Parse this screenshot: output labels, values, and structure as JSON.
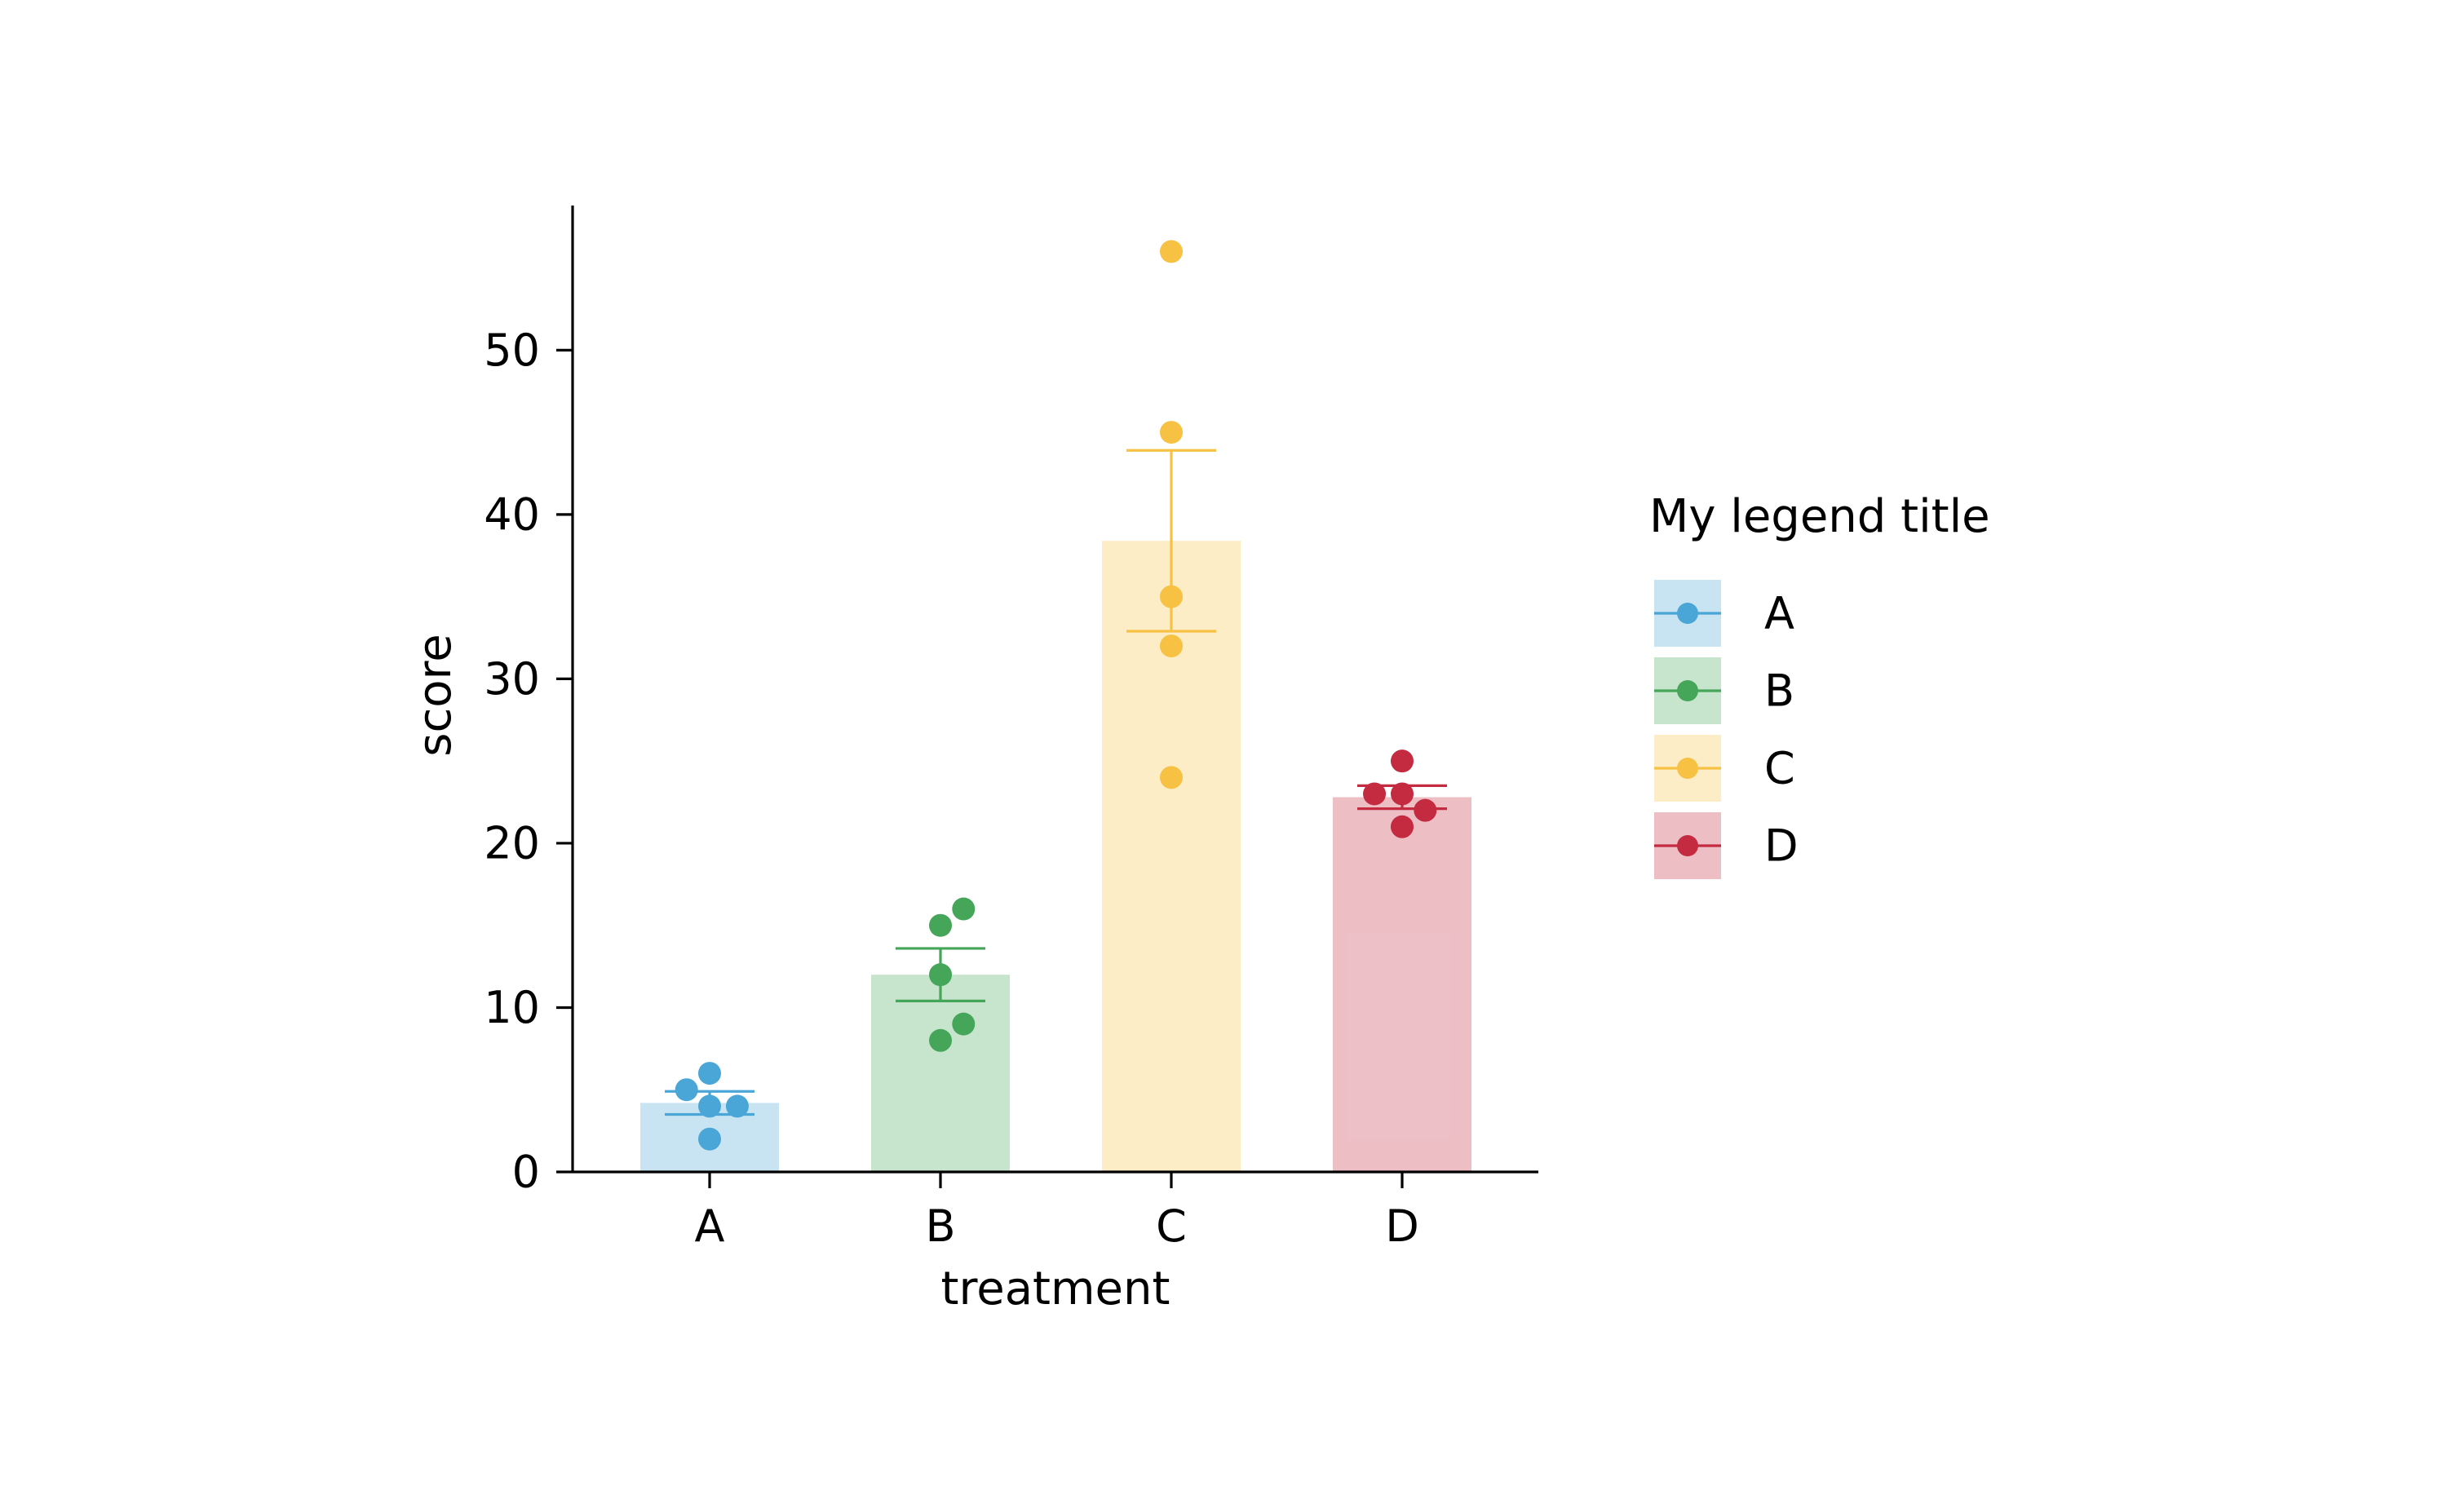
{
  "chart_data": {
    "type": "bar",
    "categories": [
      "A",
      "B",
      "C",
      "D"
    ],
    "colors": [
      "#4aa6d6",
      "#45a65a",
      "#f7c244",
      "#c42a40"
    ],
    "bar_opacity": 0.3,
    "values": [
      4.2,
      12.0,
      38.4,
      22.8
    ],
    "error_bars": [
      {
        "low": 3.5,
        "high": 4.9
      },
      {
        "low": 10.4,
        "high": 13.6
      },
      {
        "low": 32.9,
        "high": 43.9
      },
      {
        "low": 22.1,
        "high": 23.5
      }
    ],
    "points": [
      [
        {
          "x": 0,
          "y": 6
        },
        {
          "x": -0.1,
          "y": 5
        },
        {
          "x": 0,
          "y": 4
        },
        {
          "x": 0.12,
          "y": 4
        },
        {
          "x": 0,
          "y": 2
        }
      ],
      [
        {
          "x": 0.1,
          "y": 16
        },
        {
          "x": 0,
          "y": 15
        },
        {
          "x": 0,
          "y": 12
        },
        {
          "x": 0.1,
          "y": 9
        },
        {
          "x": 0,
          "y": 8
        }
      ],
      [
        {
          "x": 0,
          "y": 56
        },
        {
          "x": 0,
          "y": 45
        },
        {
          "x": 0,
          "y": 35
        },
        {
          "x": 0,
          "y": 32
        },
        {
          "x": 0,
          "y": 24
        }
      ],
      [
        {
          "x": 0,
          "y": 25
        },
        {
          "x": -0.12,
          "y": 23
        },
        {
          "x": 0,
          "y": 23
        },
        {
          "x": 0.1,
          "y": 22
        },
        {
          "x": 0,
          "y": 21
        }
      ]
    ],
    "xlabel": "treatment",
    "ylabel": "score",
    "ylim": [
      0,
      58.8
    ],
    "yticks": [
      0,
      10,
      20,
      30,
      40,
      50
    ],
    "grid": false,
    "legend": {
      "title": "My legend title",
      "placement": "right",
      "entries": [
        "A",
        "B",
        "C",
        "D"
      ]
    }
  }
}
